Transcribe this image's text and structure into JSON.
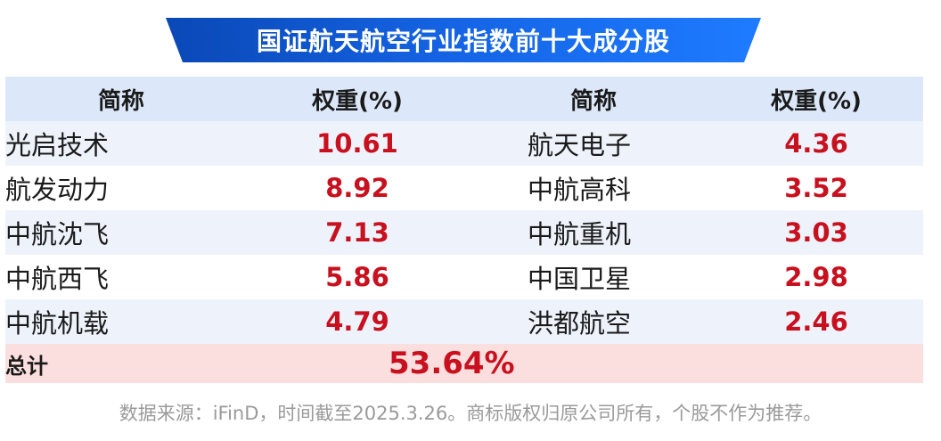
{
  "title": "国证航天航空行业指数前十大成分股",
  "colors": {
    "banner_dark": "#0a48b6",
    "banner_light": "#1e7bff",
    "header_bg": "#dce8f9",
    "row_alt_bg": "#eef3fb",
    "total_bg": "#fbdede",
    "value_red": "#c8101e"
  },
  "table": {
    "headers": [
      "简称",
      "权重(%)",
      "简称",
      "权重(%)"
    ],
    "rows": [
      {
        "name1": "光启技术",
        "w1": "10.61",
        "name2": "航天电子",
        "w2": "4.36"
      },
      {
        "name1": "航发动力",
        "w1": "8.92",
        "name2": "中航高科",
        "w2": "3.52"
      },
      {
        "name1": "中航沈飞",
        "w1": "7.13",
        "name2": "中航重机",
        "w2": "3.03"
      },
      {
        "name1": "中航西飞",
        "w1": "5.86",
        "name2": "中国卫星",
        "w2": "2.98"
      },
      {
        "name1": "中航机载",
        "w1": "4.79",
        "name2": "洪都航空",
        "w2": "2.46"
      }
    ],
    "total_label": "总计",
    "total_value": "53.64%"
  },
  "source_note": "数据来源：iFinD，时间截至2025.3.26。商标版权归原公司所有，个股不作为推荐。"
}
